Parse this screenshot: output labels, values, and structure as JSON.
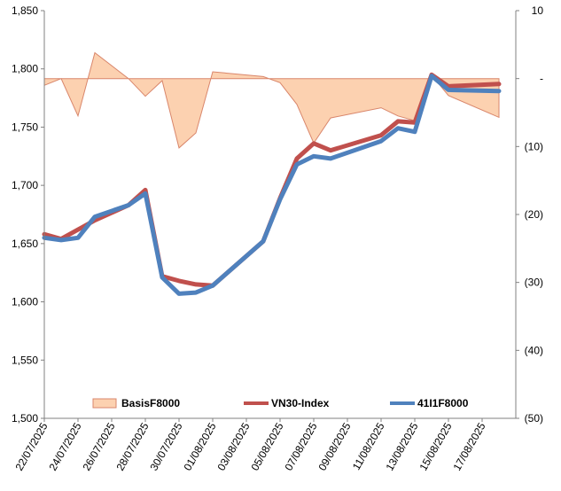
{
  "chart_data": {
    "type": "line",
    "x": [
      "22/07/2025",
      "23/07/2025",
      "24/07/2025",
      "25/07/2025",
      "26/07/2025",
      "27/07/2025",
      "28/07/2025",
      "29/07/2025",
      "30/07/2025",
      "31/07/2025",
      "01/08/2025",
      "02/08/2025",
      "03/08/2025",
      "04/08/2025",
      "05/08/2025",
      "06/08/2025",
      "07/08/2025",
      "08/08/2025",
      "09/08/2025",
      "10/08/2025",
      "11/08/2025",
      "12/08/2025",
      "13/08/2025",
      "14/08/2025",
      "15/08/2025",
      "16/08/2025",
      "17/08/2025",
      "18/08/2025",
      "19/08/2025"
    ],
    "x_tick_labels": [
      "22/07/2025",
      "24/07/2025",
      "26/07/2025",
      "28/07/2025",
      "30/07/2025",
      "01/08/2025",
      "03/08/2025",
      "05/08/2025",
      "07/08/2025",
      "09/08/2025",
      "11/08/2025",
      "13/08/2025",
      "15/08/2025",
      "17/08/2025"
    ],
    "points": [
      {
        "x": "22/07/2025",
        "vn30": 1658,
        "fut": 1655,
        "basis": -1
      },
      {
        "x": "23/07/2025",
        "vn30": 1654,
        "fut": 1653,
        "basis": 0
      },
      {
        "x": "24/07/2025",
        "vn30": 1662,
        "fut": 1655,
        "basis": -5.5
      },
      {
        "x": "25/07/2025",
        "vn30": 1670,
        "fut": 1673,
        "basis": 3.8
      },
      {
        "x": "27/07/2025",
        "vn30": 1683,
        "fut": 1683,
        "basis": 0
      },
      {
        "x": "28/07/2025",
        "vn30": 1696,
        "fut": 1693,
        "basis": -2.6
      },
      {
        "x": "29/07/2025",
        "vn30": 1622,
        "fut": 1621,
        "basis": -0.3
      },
      {
        "x": "30/07/2025",
        "vn30": 1618,
        "fut": 1607,
        "basis": -10.2
      },
      {
        "x": "31/07/2025",
        "vn30": 1615,
        "fut": 1608,
        "basis": -8
      },
      {
        "x": "01/08/2025",
        "vn30": 1614,
        "fut": 1614,
        "basis": 1
      },
      {
        "x": "04/08/2025",
        "vn30": 1652,
        "fut": 1652,
        "basis": 0.3
      },
      {
        "x": "05/08/2025",
        "vn30": 1689,
        "fut": 1688,
        "basis": -0.6
      },
      {
        "x": "06/08/2025",
        "vn30": 1723,
        "fut": 1718,
        "basis": -3.8
      },
      {
        "x": "07/08/2025",
        "vn30": 1736,
        "fut": 1725,
        "basis": -9.5
      },
      {
        "x": "08/08/2025",
        "vn30": 1730,
        "fut": 1723,
        "basis": -5.8
      },
      {
        "x": "11/08/2025",
        "vn30": 1743,
        "fut": 1738,
        "basis": -4.3
      },
      {
        "x": "12/08/2025",
        "vn30": 1755,
        "fut": 1749,
        "basis": -5.5
      },
      {
        "x": "13/08/2025",
        "vn30": 1754,
        "fut": 1746,
        "basis": -6.2
      },
      {
        "x": "14/08/2025",
        "vn30": 1795,
        "fut": 1794,
        "basis": 0.5
      },
      {
        "x": "15/08/2025",
        "vn30": 1785,
        "fut": 1782,
        "basis": -2.5
      },
      {
        "x": "18/08/2025",
        "vn30": 1787,
        "fut": 1781,
        "basis": -5.7
      }
    ],
    "series": [
      {
        "name": "BasisF8000",
        "key": "basis",
        "kind": "area",
        "axis": "right",
        "color": "#fcd1b0",
        "stroke": "#d9866b"
      },
      {
        "name": "VN30-Index",
        "key": "vn30",
        "kind": "line",
        "axis": "left",
        "color": "#c0504d"
      },
      {
        "name": "41I1F8000",
        "key": "fut",
        "kind": "line",
        "axis": "left",
        "color": "#4f81bd"
      }
    ],
    "ylim_left": [
      1500,
      1850
    ],
    "yticks_left": [
      "1,500",
      "1,550",
      "1,600",
      "1,650",
      "1,700",
      "1,750",
      "1,800",
      "1,850"
    ],
    "ylim_right": [
      -50,
      10
    ],
    "yticks_right": [
      "10",
      "-",
      "(10)",
      "(20)",
      "(30)",
      "(40)",
      "(50)"
    ],
    "grid": false,
    "legend_position": "bottom-inside"
  }
}
